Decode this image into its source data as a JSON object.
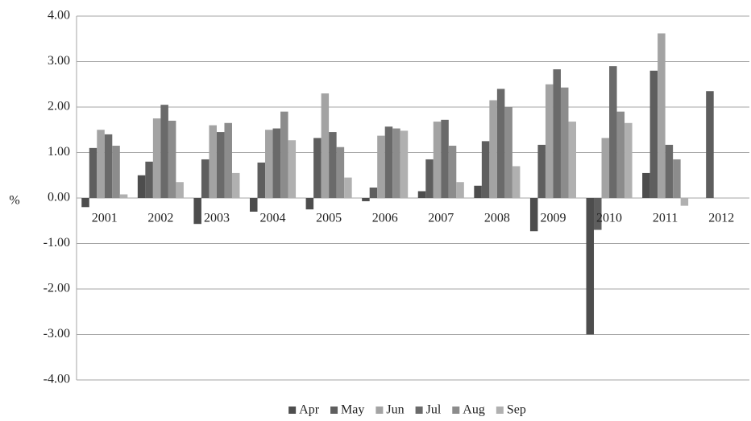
{
  "chart_data": {
    "type": "bar",
    "y_label": "%",
    "categories": [
      "2001",
      "2002",
      "2003",
      "2004",
      "2005",
      "2006",
      "2007",
      "2008",
      "2009",
      "2010",
      "2011",
      "2012"
    ],
    "series": [
      {
        "name": "Apr",
        "color": "#4d4d4d",
        "values": [
          -0.2,
          0.5,
          -0.57,
          -0.3,
          -0.25,
          -0.07,
          0.15,
          0.27,
          -0.73,
          -3.0,
          0.55,
          null
        ]
      },
      {
        "name": "May",
        "color": "#5e5e5e",
        "values": [
          1.1,
          0.8,
          0.85,
          0.78,
          1.32,
          0.23,
          0.85,
          1.25,
          1.17,
          -0.7,
          2.8,
          2.35
        ]
      },
      {
        "name": "Jun",
        "color": "#a3a3a3",
        "values": [
          1.5,
          1.75,
          1.6,
          1.5,
          2.3,
          1.37,
          1.68,
          2.15,
          2.5,
          1.32,
          3.62,
          null
        ]
      },
      {
        "name": "Jul",
        "color": "#6a6a6a",
        "values": [
          1.4,
          2.05,
          1.45,
          1.53,
          1.45,
          1.57,
          1.72,
          2.4,
          2.83,
          2.9,
          1.17,
          null
        ]
      },
      {
        "name": "Aug",
        "color": "#8c8c8c",
        "values": [
          1.15,
          1.7,
          1.65,
          1.9,
          1.12,
          1.53,
          1.15,
          2.0,
          2.43,
          1.9,
          0.85,
          null
        ]
      },
      {
        "name": "Sep",
        "color": "#b0b0b0",
        "values": [
          0.08,
          0.35,
          0.55,
          1.27,
          0.45,
          1.48,
          0.35,
          0.7,
          1.68,
          1.65,
          -0.17,
          null
        ]
      }
    ],
    "ylim": [
      -4,
      4
    ],
    "yticks": [
      {
        "value": -4,
        "label": "-4.00"
      },
      {
        "value": -3,
        "label": "-3.00"
      },
      {
        "value": -2,
        "label": "-2.00"
      },
      {
        "value": -1,
        "label": "-1.00"
      },
      {
        "value": 0,
        "label": "0.00"
      },
      {
        "value": 1,
        "label": "1.00"
      },
      {
        "value": 2,
        "label": "2.00"
      },
      {
        "value": 3,
        "label": "3.00"
      },
      {
        "value": 4,
        "label": "4.00"
      }
    ],
    "grid": true,
    "legend": "bottom"
  }
}
